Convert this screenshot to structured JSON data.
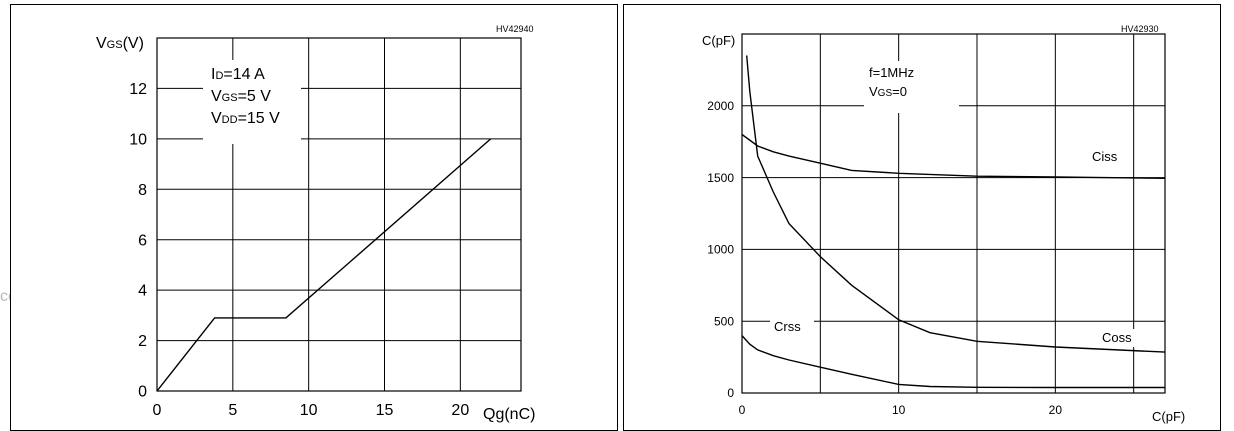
{
  "watermark": "com",
  "chart_data": [
    {
      "type": "line",
      "ref": "HV42940",
      "ylabel": {
        "main": "V",
        "sub": "GS",
        "unit": "(V)"
      },
      "xlabel": "Qg(nC)",
      "xlim": [
        0,
        24
      ],
      "ylim": [
        0,
        14
      ],
      "x_ticks": [
        0,
        5,
        10,
        15,
        20
      ],
      "x_tick_labels": [
        "0",
        "5",
        "10",
        "15",
        "20"
      ],
      "y_ticks": [
        0,
        2,
        4,
        6,
        8,
        10,
        12
      ],
      "y_tick_labels": [
        "0",
        "2",
        "4",
        "6",
        "8",
        "10",
        "12"
      ],
      "grid": true,
      "annotations": [
        {
          "main": "I",
          "sub": "D",
          "rest": "=14 A"
        },
        {
          "main": "V",
          "sub": "GS",
          "rest": "=5 V"
        },
        {
          "main": "V",
          "sub": "DD",
          "rest": "=15 V"
        }
      ],
      "series": [
        {
          "points": [
            [
              0,
              0
            ],
            [
              3.8,
              2.9
            ],
            [
              8.5,
              2.9
            ],
            [
              12.5,
              5.0
            ],
            [
              22.0,
              10.0
            ]
          ]
        }
      ]
    },
    {
      "type": "line",
      "ref": "HV42930",
      "ylabel": "C(pF)",
      "xlabel": "C(pF)",
      "xlim": [
        0,
        27
      ],
      "ylim": [
        0,
        2500
      ],
      "x_ticks": [
        0,
        10,
        20
      ],
      "x_tick_labels": [
        "0",
        "10",
        "20"
      ],
      "y_ticks": [
        0,
        500,
        1000,
        1500,
        2000
      ],
      "y_tick_labels": [
        "0",
        "500",
        "1000",
        "1500",
        "2000"
      ],
      "grid": true,
      "annotations": [
        {
          "main": "f=1MHz",
          "sub": "",
          "rest": ""
        },
        {
          "main": "V",
          "sub": "GS",
          "rest": "=0"
        }
      ],
      "series": [
        {
          "name": "Ciss",
          "points": [
            [
              0,
              1800
            ],
            [
              1,
              1720
            ],
            [
              2,
              1680
            ],
            [
              3,
              1650
            ],
            [
              5,
              1600
            ],
            [
              7,
              1550
            ],
            [
              10,
              1530
            ],
            [
              15,
              1510
            ],
            [
              20,
              1505
            ],
            [
              27,
              1495
            ]
          ]
        },
        {
          "name": "Coss",
          "points": [
            [
              0.3,
              2350
            ],
            [
              0.5,
              2100
            ],
            [
              1,
              1650
            ],
            [
              2,
              1400
            ],
            [
              3,
              1180
            ],
            [
              5,
              950
            ],
            [
              7,
              750
            ],
            [
              10,
              510
            ],
            [
              12,
              420
            ],
            [
              15,
              360
            ],
            [
              20,
              320
            ],
            [
              27,
              285
            ]
          ]
        },
        {
          "name": "Crss",
          "points": [
            [
              0,
              400
            ],
            [
              0.5,
              340
            ],
            [
              1,
              300
            ],
            [
              2,
              260
            ],
            [
              3,
              230
            ],
            [
              5,
              180
            ],
            [
              7,
              130
            ],
            [
              10,
              60
            ],
            [
              12,
              45
            ],
            [
              15,
              40
            ],
            [
              20,
              38
            ],
            [
              27,
              38
            ]
          ]
        }
      ]
    }
  ]
}
